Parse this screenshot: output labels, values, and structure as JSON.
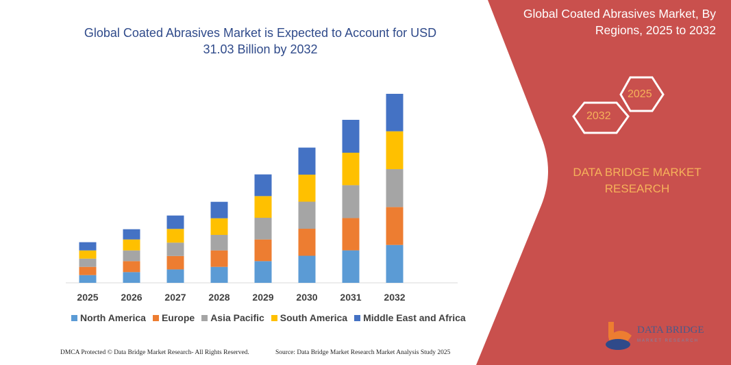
{
  "header": {
    "title": "Global Coated Abrasives Market is Expected to Account for USD 31.03 Billion by 2032"
  },
  "side_panel": {
    "title": "Global Coated Abrasives Market, By Regions, 2025 to 2032",
    "hex_start": "2025",
    "hex_end": "2032",
    "brand": "DATA BRIDGE MARKET RESEARCH",
    "logo_text": "DATA BRIDGE",
    "logo_sub": "MARKET RESEARCH",
    "panel_color": "#c9504d"
  },
  "footer": {
    "left": "DMCA Protected © Data Bridge Market Research- All Rights Reserved.",
    "right": "Source: Data Bridge Market Research  Market Analysis Study 2025"
  },
  "chart_data": {
    "type": "bar",
    "stacked": true,
    "title": "Global Coated Abrasives Market is Expected to Account for USD 31.03 Billion by 2032",
    "xlabel": "",
    "ylabel": "",
    "ylim": [
      0,
      31.03
    ],
    "grid": false,
    "legend_position": "bottom",
    "categories": [
      "2025",
      "2026",
      "2027",
      "2028",
      "2029",
      "2030",
      "2031",
      "2032"
    ],
    "series": [
      {
        "name": "North America",
        "color": "#5b9bd5",
        "values": [
          1.27,
          1.76,
          2.2,
          2.62,
          3.56,
          4.44,
          5.33,
          6.22
        ]
      },
      {
        "name": "Europe",
        "color": "#ed7d31",
        "values": [
          1.35,
          1.8,
          2.2,
          2.7,
          3.56,
          4.44,
          5.3,
          6.22
        ]
      },
      {
        "name": "Asia Pacific",
        "color": "#a5a5a5",
        "values": [
          1.35,
          1.76,
          2.2,
          2.55,
          3.56,
          4.44,
          5.4,
          6.22
        ]
      },
      {
        "name": "South America",
        "color": "#ffc000",
        "values": [
          1.35,
          1.8,
          2.25,
          2.73,
          3.56,
          4.44,
          5.33,
          6.22
        ]
      },
      {
        "name": "Middle East and Africa",
        "color": "#4472c4",
        "values": [
          1.35,
          1.68,
          2.2,
          2.7,
          3.56,
          4.44,
          5.4,
          6.15
        ]
      }
    ]
  }
}
